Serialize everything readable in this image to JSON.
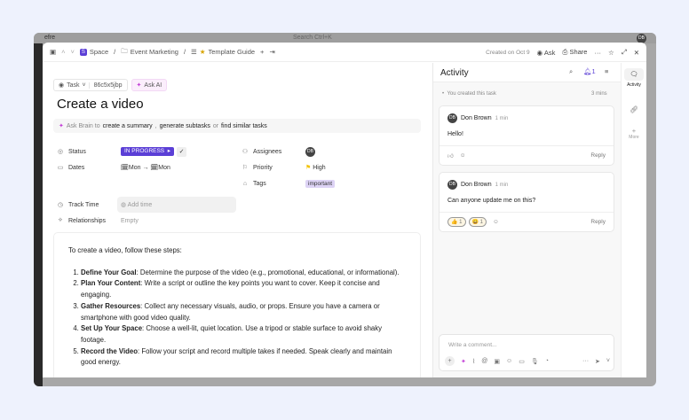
{
  "bg_app": {
    "workspace": "efre",
    "search": "Search  Ctrl+K",
    "user_initials": "DB"
  },
  "breadcrumb": {
    "space": "Space",
    "folder": "Event Marketing",
    "list": "Template Guide"
  },
  "topbar": {
    "created": "Created on Oct 9",
    "ask": "Ask",
    "share": "Share"
  },
  "task": {
    "type": "Task",
    "id": "86c5x5jbp",
    "ask_ai": "Ask AI",
    "title": "Create a video"
  },
  "brain": {
    "prefix": "Ask Brain to",
    "a": "create a summary",
    "sep1": ",",
    "b": "generate subtasks",
    "sep2": "or",
    "c": "find similar tasks"
  },
  "fields": {
    "status_label": "Status",
    "status_value": "IN PROGRESS",
    "dates_label": "Dates",
    "start": "Mon",
    "end": "Mon",
    "track_label": "Track Time",
    "track_value": "Add time",
    "rel_label": "Relationships",
    "rel_value": "Empty",
    "assignees_label": "Assignees",
    "assignee": "DB",
    "priority_label": "Priority",
    "priority_value": "High",
    "tags_label": "Tags",
    "tag": "important"
  },
  "description": {
    "intro": "To create a video, follow these steps:",
    "steps": [
      {
        "title": "Define Your Goal",
        "text": ": Determine the purpose of the video (e.g., promotional, educational, or informational)."
      },
      {
        "title": "Plan Your Content",
        "text": ": Write a script or outline the key points you want to cover. Keep it concise and engaging."
      },
      {
        "title": "Gather Resources",
        "text": ": Collect any necessary visuals, audio, or props. Ensure you have a camera or smartphone with good video quality."
      },
      {
        "title": "Set Up Your Space",
        "text": ": Choose a well-lit, quiet location. Use a tripod or stable surface to avoid shaky footage."
      },
      {
        "title": "Record the Video",
        "text": ": Follow your script and record multiple takes if needed. Speak clearly and maintain good energy."
      }
    ]
  },
  "activity": {
    "title": "Activity",
    "notif_count": "1",
    "created": "You created this task",
    "created_time": "3 mins",
    "comments": [
      {
        "initials": "DB",
        "author": "Don Brown",
        "time": "1 min",
        "text": "Hello!",
        "reply": "Reply"
      },
      {
        "initials": "DB",
        "author": "Don Brown",
        "time": "1 min",
        "text": "Can anyone update me on this?",
        "reply": "Reply",
        "reactions": [
          {
            "emoji": "👍",
            "count": "1"
          },
          {
            "emoji": "😀",
            "count": "1"
          }
        ]
      }
    ],
    "composer_placeholder": "Write a comment..."
  },
  "rail": {
    "activity": "Activity",
    "more": "More"
  }
}
